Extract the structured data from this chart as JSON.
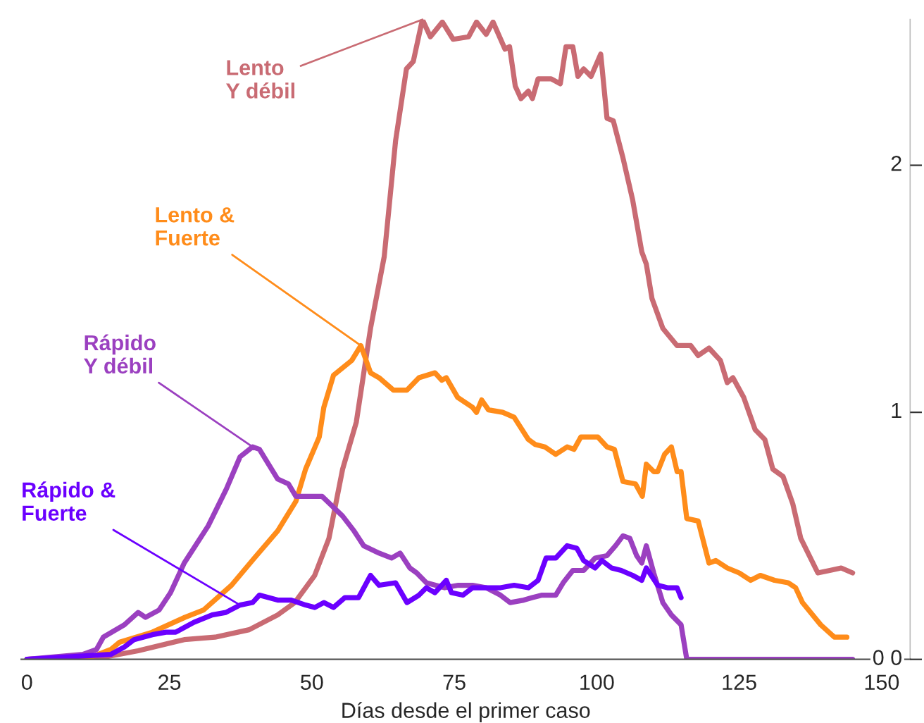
{
  "chart_data": {
    "type": "line",
    "xlabel": "Días desde el primer caso",
    "xlim": [
      -1,
      155
    ],
    "xticks": [
      0,
      25,
      50,
      75,
      100,
      125,
      150
    ],
    "ylim": [
      0,
      2.59
    ],
    "yticks": [
      {
        "value": 0,
        "label": "0 0"
      },
      1,
      2
    ],
    "grid": false,
    "marker": "none",
    "line_style": "solid",
    "series": [
      {
        "name": "Lento\nY débil",
        "color": "#c96b73",
        "x": [
          0,
          11.5,
          19.5,
          27.6,
          33,
          39,
          44,
          47,
          50.5,
          53,
          55.4,
          57.8,
          60.3,
          62.7,
          64.7,
          66.6,
          67.8,
          69.4,
          70.8,
          72.9,
          74.8,
          77.5,
          78.9,
          80.6,
          81.8,
          83.9,
          84.7,
          85.7,
          86.7,
          88,
          88.7,
          89.7,
          92,
          93.6,
          94.6,
          95.8,
          96.7,
          97.7,
          99,
          100.7,
          101.8,
          102.9,
          104.6,
          106.3,
          107.9,
          108.7,
          109.7,
          111.6,
          114.1,
          116.5,
          117.8,
          119.7,
          121.7,
          122.9,
          123.9,
          125.8,
          127.8,
          129.5,
          130.9,
          132.7,
          134.4,
          135.8,
          138.8,
          140.9,
          142.9,
          144.9
        ],
        "values": [
          0,
          0,
          0.035,
          0.08,
          0.09,
          0.12,
          0.18,
          0.23,
          0.34,
          0.49,
          0.77,
          0.96,
          1.34,
          1.63,
          2.1,
          2.39,
          2.42,
          2.59,
          2.52,
          2.58,
          2.51,
          2.52,
          2.58,
          2.53,
          2.58,
          2.47,
          2.48,
          2.32,
          2.27,
          2.3,
          2.27,
          2.35,
          2.35,
          2.33,
          2.48,
          2.48,
          2.36,
          2.39,
          2.36,
          2.45,
          2.19,
          2.18,
          2.03,
          1.86,
          1.65,
          1.6,
          1.46,
          1.34,
          1.27,
          1.27,
          1.23,
          1.26,
          1.21,
          1.12,
          1.14,
          1.06,
          0.93,
          0.89,
          0.77,
          0.74,
          0.63,
          0.49,
          0.35,
          0.36,
          0.37,
          0.35
        ]
      },
      {
        "name": "Lento &\nFuerte",
        "color": "#ff8c1a",
        "x": [
          0,
          11.4,
          14.7,
          16.3,
          22,
          27.7,
          31,
          35.9,
          39.9,
          44,
          47.2,
          48.9,
          51.3,
          52.1,
          53.8,
          55.4,
          57,
          58.6,
          60.3,
          61.8,
          64.3,
          66.7,
          68.8,
          71.6,
          72.8,
          73.6,
          75.6,
          78.2,
          78.9,
          79.8,
          81,
          83.5,
          85.5,
          88,
          89.2,
          90.9,
          92.8,
          94.8,
          96,
          97.2,
          100.2,
          101.8,
          103.1,
          104.6,
          106.8,
          108,
          108.7,
          110,
          110.7,
          111.9,
          113.1,
          114.1,
          114.8,
          115.8,
          117.8,
          119.7,
          120.9,
          122.9,
          125,
          127,
          128.7,
          131.2,
          133.6,
          134.9,
          136.1,
          139.3,
          141.7,
          143.9
        ],
        "values": [
          0,
          0.01,
          0.04,
          0.07,
          0.11,
          0.17,
          0.2,
          0.3,
          0.41,
          0.52,
          0.64,
          0.77,
          0.9,
          1.02,
          1.15,
          1.18,
          1.21,
          1.27,
          1.16,
          1.14,
          1.09,
          1.09,
          1.14,
          1.16,
          1.13,
          1.14,
          1.06,
          1.02,
          1.0,
          1.05,
          1.01,
          1.0,
          0.98,
          0.89,
          0.87,
          0.86,
          0.83,
          0.86,
          0.85,
          0.9,
          0.9,
          0.86,
          0.85,
          0.72,
          0.71,
          0.66,
          0.79,
          0.76,
          0.76,
          0.83,
          0.86,
          0.76,
          0.76,
          0.57,
          0.56,
          0.39,
          0.4,
          0.37,
          0.35,
          0.32,
          0.34,
          0.32,
          0.31,
          0.29,
          0.23,
          0.14,
          0.09,
          0.09
        ]
      },
      {
        "name": "Rápido\nY débil",
        "color": "#9b40c0",
        "x": [
          0,
          9.8,
          12.2,
          13.4,
          17.1,
          19.5,
          20.8,
          23.2,
          25.2,
          27.6,
          31.8,
          35,
          37.4,
          39.6,
          40.8,
          44,
          45.9,
          47.2,
          49.6,
          51.8,
          55.4,
          57.4,
          59.1,
          61.8,
          64,
          65.5,
          67.2,
          68.4,
          70.1,
          73.3,
          75.7,
          78.2,
          80.6,
          83.1,
          84.8,
          87.2,
          88.7,
          90.4,
          92.8,
          94.1,
          95.8,
          97.7,
          99.7,
          101.8,
          103.3,
          104.6,
          105.8,
          107,
          107.9,
          108.7,
          110,
          111.6,
          113.1,
          114.8,
          115.8,
          144.9
        ],
        "values": [
          0,
          0.02,
          0.04,
          0.09,
          0.14,
          0.19,
          0.17,
          0.2,
          0.27,
          0.39,
          0.54,
          0.69,
          0.82,
          0.86,
          0.85,
          0.73,
          0.71,
          0.66,
          0.66,
          0.66,
          0.58,
          0.52,
          0.46,
          0.43,
          0.41,
          0.43,
          0.37,
          0.35,
          0.31,
          0.29,
          0.3,
          0.3,
          0.29,
          0.26,
          0.23,
          0.24,
          0.25,
          0.26,
          0.26,
          0.31,
          0.36,
          0.36,
          0.41,
          0.42,
          0.46,
          0.5,
          0.49,
          0.42,
          0.39,
          0.46,
          0.35,
          0.23,
          0.18,
          0.14,
          0,
          0
        ]
      },
      {
        "name": "Rápido &\nFuerte",
        "color": "#6b00ff",
        "x": [
          0,
          14.7,
          17.1,
          18.8,
          22,
          24.4,
          26.1,
          29.3,
          32.5,
          34.9,
          37.4,
          39.6,
          40.8,
          44,
          46.4,
          48.9,
          50.5,
          52.1,
          53.8,
          55.8,
          58.2,
          60.3,
          61.8,
          64.7,
          66.7,
          68.8,
          70.1,
          71.6,
          73.6,
          74.5,
          76.5,
          78.2,
          80.6,
          83.1,
          85.5,
          88,
          89.7,
          91.1,
          92.8,
          94.8,
          96.5,
          97.7,
          99.7,
          100.9,
          102.6,
          104.3,
          106.3,
          107.9,
          108.7,
          110.7,
          112.4,
          114.1,
          114.8
        ],
        "values": [
          0,
          0.02,
          0.05,
          0.08,
          0.1,
          0.11,
          0.11,
          0.15,
          0.18,
          0.19,
          0.22,
          0.23,
          0.26,
          0.24,
          0.24,
          0.22,
          0.21,
          0.23,
          0.21,
          0.25,
          0.25,
          0.34,
          0.3,
          0.31,
          0.23,
          0.26,
          0.29,
          0.27,
          0.32,
          0.27,
          0.26,
          0.29,
          0.29,
          0.29,
          0.3,
          0.29,
          0.32,
          0.41,
          0.41,
          0.46,
          0.45,
          0.4,
          0.37,
          0.4,
          0.37,
          0.36,
          0.34,
          0.32,
          0.37,
          0.3,
          0.29,
          0.29,
          0.25
        ]
      }
    ]
  }
}
